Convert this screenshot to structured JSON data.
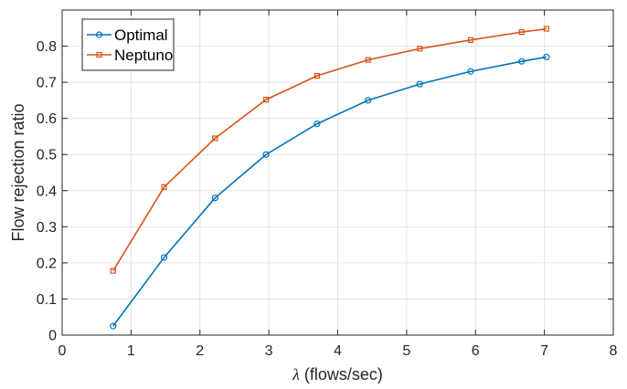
{
  "chart_data": {
    "type": "line",
    "title": "",
    "xlabel_symbol": "λ",
    "xlabel_text": " (flows/sec)",
    "ylabel": "Flow rejection ratio",
    "xlim": [
      0,
      8
    ],
    "ylim": [
      0,
      0.9
    ],
    "xticks": [
      0,
      1,
      2,
      3,
      4,
      5,
      6,
      7,
      8
    ],
    "yticks": [
      0,
      0.1,
      0.2,
      0.3,
      0.4,
      0.5,
      0.6,
      0.7,
      0.8
    ],
    "xtick_labels": [
      "0",
      "1",
      "2",
      "3",
      "4",
      "5",
      "6",
      "7",
      "8"
    ],
    "ytick_labels": [
      "0",
      "0.1",
      "0.2",
      "0.3",
      "0.4",
      "0.5",
      "0.6",
      "0.7",
      "0.8"
    ],
    "grid": true,
    "legend_position": "top-left",
    "series": [
      {
        "name": "Optimal",
        "color": "#0072BD",
        "marker": "circle",
        "x": [
          0.74,
          1.48,
          2.22,
          2.96,
          3.7,
          4.44,
          5.19,
          5.93,
          6.67,
          7.03
        ],
        "y": [
          0.025,
          0.215,
          0.38,
          0.5,
          0.585,
          0.65,
          0.695,
          0.73,
          0.758,
          0.77
        ]
      },
      {
        "name": "Neptuno",
        "color": "#D95319",
        "marker": "square",
        "x": [
          0.74,
          1.48,
          2.22,
          2.96,
          3.7,
          4.44,
          5.19,
          5.93,
          6.67,
          7.03
        ],
        "y": [
          0.178,
          0.41,
          0.545,
          0.652,
          0.718,
          0.762,
          0.793,
          0.817,
          0.839,
          0.848
        ]
      }
    ]
  }
}
